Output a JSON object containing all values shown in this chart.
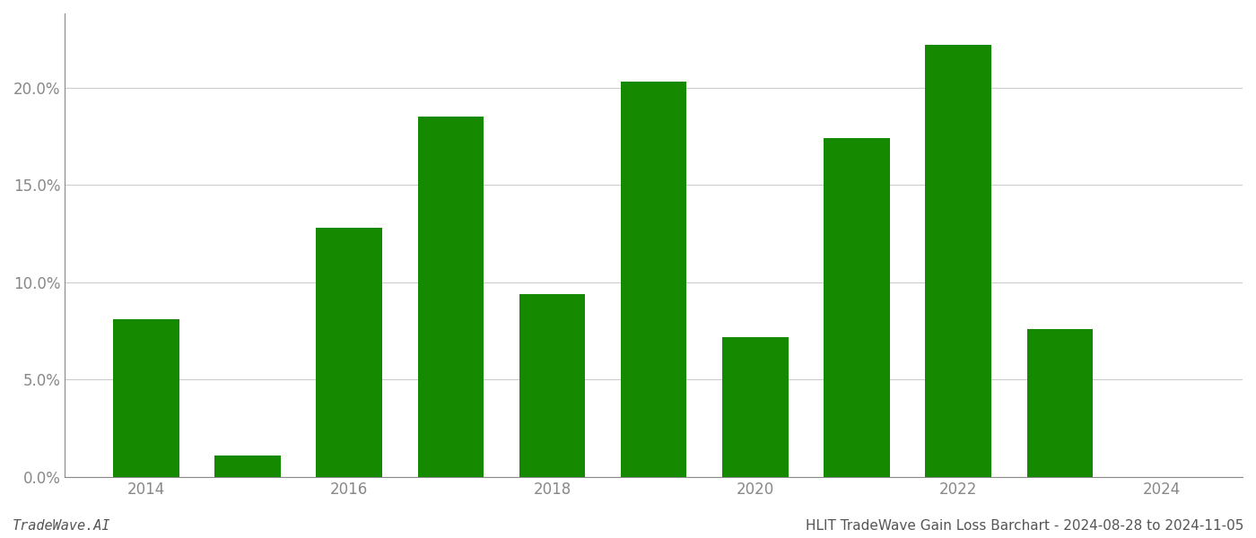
{
  "years": [
    2014,
    2015,
    2016,
    2017,
    2018,
    2019,
    2020,
    2021,
    2022,
    2023,
    2024
  ],
  "values": [
    0.081,
    0.011,
    0.128,
    0.185,
    0.094,
    0.203,
    0.072,
    0.174,
    0.222,
    0.076,
    null
  ],
  "bar_color": "#158a00",
  "background_color": "#ffffff",
  "grid_color": "#cccccc",
  "axis_color": "#888888",
  "title": "HLIT TradeWave Gain Loss Barchart - 2024-08-28 to 2024-11-05",
  "watermark": "TradeWave.AI",
  "ylim": [
    0,
    0.238
  ],
  "yticks": [
    0.0,
    0.05,
    0.1,
    0.15,
    0.2
  ],
  "ytick_labels": [
    "0.0%",
    "5.0%",
    "10.0%",
    "15.0%",
    "20.0%"
  ],
  "xtick_positions": [
    2014,
    2016,
    2018,
    2020,
    2022,
    2024
  ],
  "xlim": [
    2013.2,
    2024.8
  ],
  "bar_width": 0.65,
  "title_fontsize": 11,
  "watermark_fontsize": 11,
  "tick_fontsize": 12,
  "tick_color": "#888888",
  "spine_color": "#888888"
}
